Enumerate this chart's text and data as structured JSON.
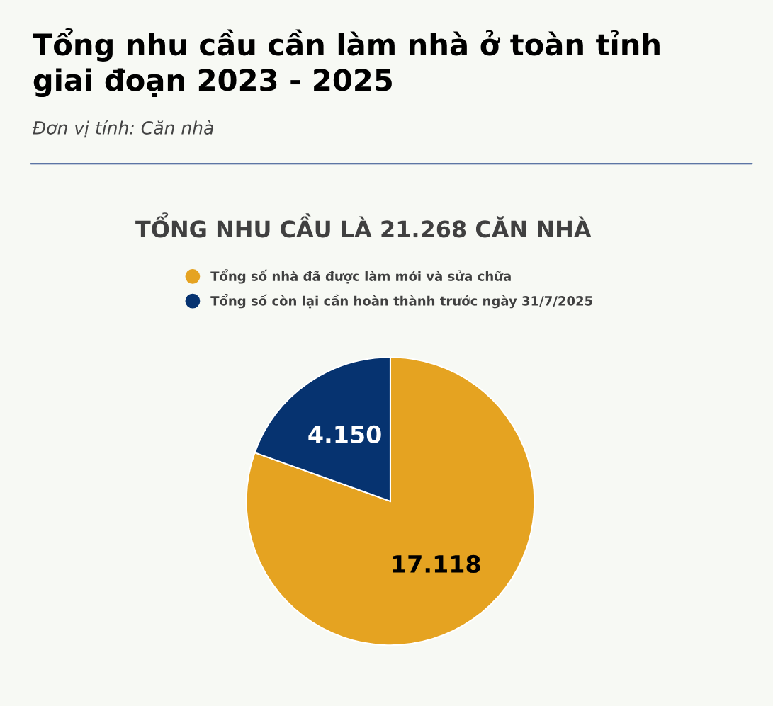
{
  "chart_data": {
    "type": "pie",
    "title": "Tổng nhu cầu cần làm nhà ở toàn tỉnh\ngiai đoạn 2023 - 2025",
    "subtitle": "Đơn vị tính: Căn nhà",
    "annotations": [
      "TỔNG NHU CẦU LÀ 21.268 CĂN NHÀ"
    ],
    "categories": [
      "Tổng số nhà đã được làm mới và sửa chữa",
      "Tổng số còn lại cần hoàn thành trước ngày 31/7/2025"
    ],
    "values": [
      17118,
      4150
    ],
    "value_labels": [
      "17.118",
      "4.150"
    ],
    "colors": [
      "#e5a321",
      "#063370"
    ],
    "legend": "top"
  }
}
